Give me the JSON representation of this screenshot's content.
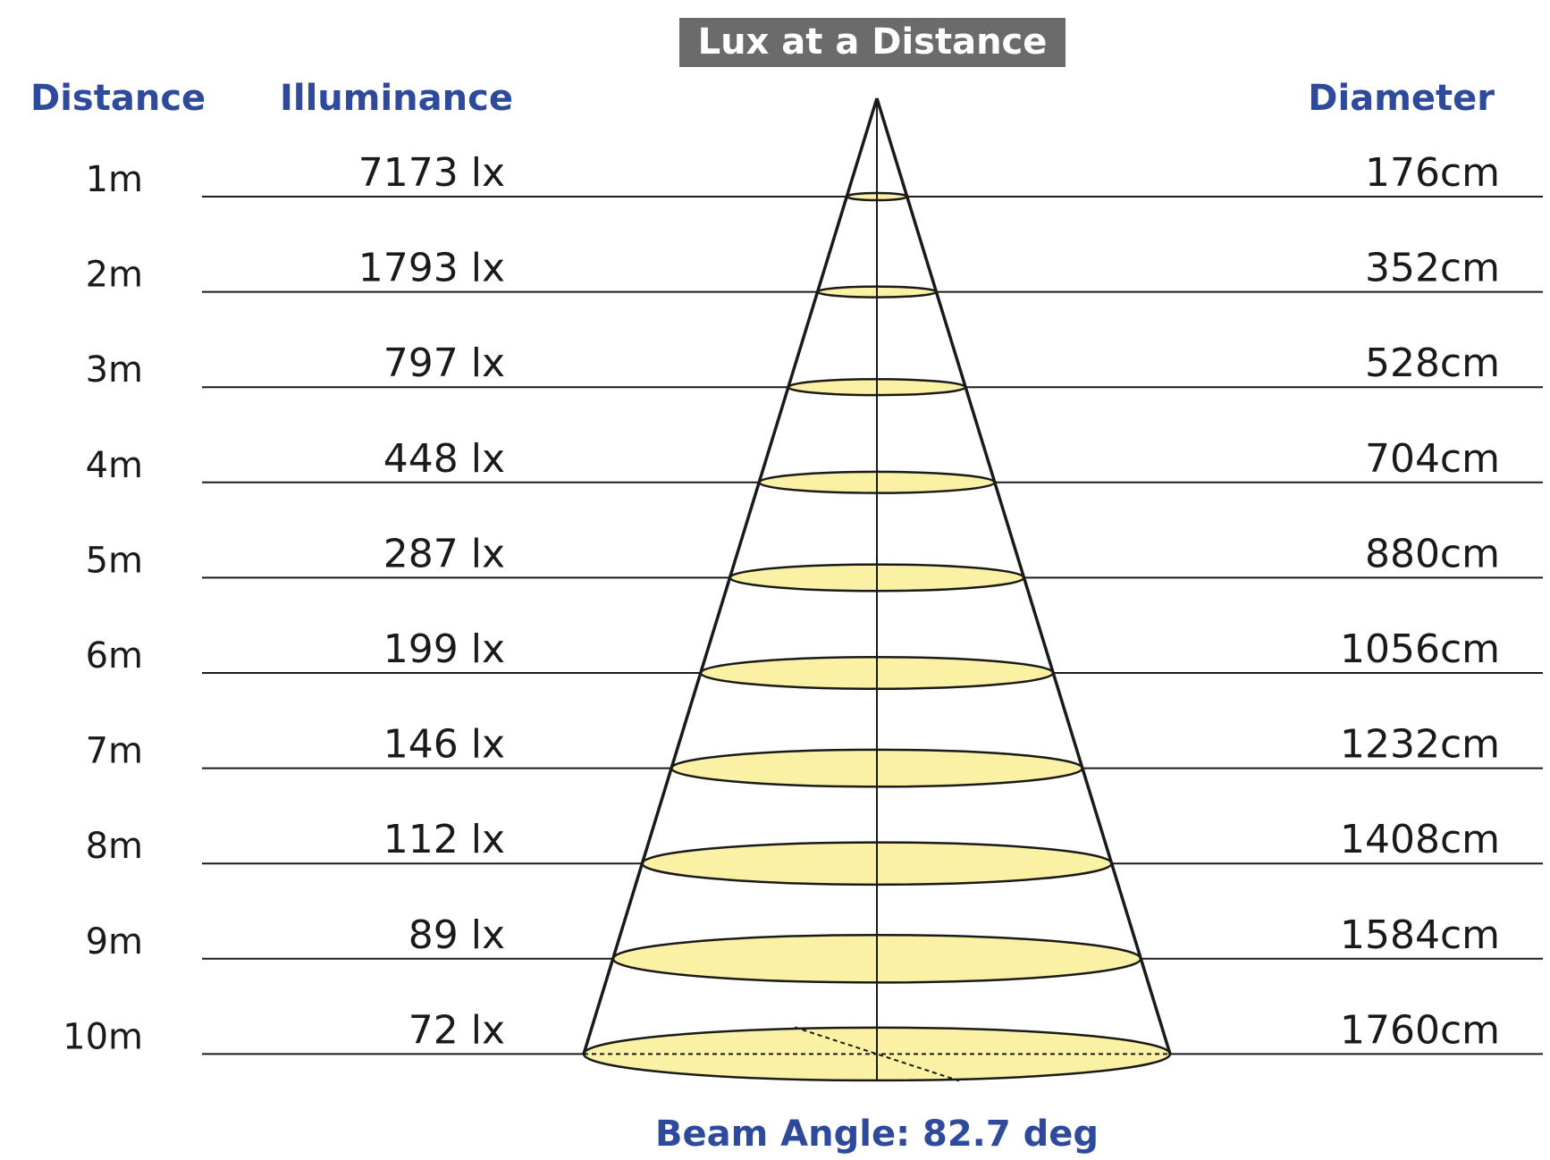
{
  "title": "Lux at a Distance",
  "headers": {
    "distance": "Distance",
    "illuminance": "Illuminance",
    "diameter": "Diameter"
  },
  "beam_angle_label": "Beam Angle: 82.7 deg",
  "rows": [
    {
      "distance": "1m",
      "illuminance": "7173 lx",
      "diameter": "176cm"
    },
    {
      "distance": "2m",
      "illuminance": "1793 lx",
      "diameter": "352cm"
    },
    {
      "distance": "3m",
      "illuminance": "797 lx",
      "diameter": "528cm"
    },
    {
      "distance": "4m",
      "illuminance": "448 lx",
      "diameter": "704cm"
    },
    {
      "distance": "5m",
      "illuminance": "287 lx",
      "diameter": "880cm"
    },
    {
      "distance": "6m",
      "illuminance": "199 lx",
      "diameter": "1056cm"
    },
    {
      "distance": "7m",
      "illuminance": "146 lx",
      "diameter": "1232cm"
    },
    {
      "distance": "8m",
      "illuminance": "112 lx",
      "diameter": "1408cm"
    },
    {
      "distance": "9m",
      "illuminance": "89 lx",
      "diameter": "1584cm"
    },
    {
      "distance": "10m",
      "illuminance": "72 lx",
      "diameter": "1760cm"
    }
  ],
  "colors": {
    "title_background": "#6b6b6b",
    "title_text": "#ffffff",
    "header_text": "#2e4a9c",
    "beam_fill": "#fbf1a4",
    "line": "#1a1a1a"
  }
}
